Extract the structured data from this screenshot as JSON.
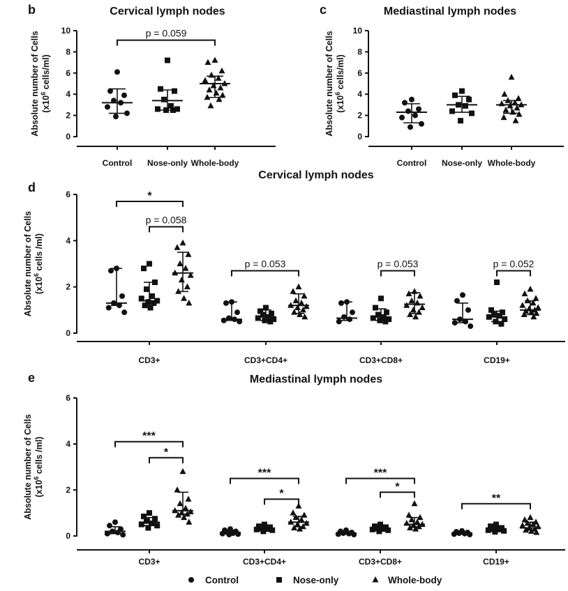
{
  "legend": [
    {
      "name": "Control",
      "marker": "circle"
    },
    {
      "name": "Nose-only",
      "marker": "square"
    },
    {
      "name": "Whole-body",
      "marker": "triangle"
    }
  ],
  "chart_data": [
    {
      "id": "b",
      "type": "scatter",
      "panel_label": "b",
      "title": "Cervical lymph nodes",
      "ylabel": [
        "Absolute number of Cells",
        "(x10^6 cells/ml)"
      ],
      "ylim": [
        0,
        10
      ],
      "yticks": [
        0,
        2,
        4,
        6,
        8,
        10
      ],
      "categories": [
        "Control",
        "Nose-only",
        "Whole-body"
      ],
      "series": [
        {
          "name": "Control",
          "marker": "circle",
          "values": [
            6.1,
            4.3,
            3.9,
            3.4,
            3.2,
            2.8,
            2.2,
            1.9
          ],
          "median": 3.2,
          "lower": 2.2,
          "upper": 4.5
        },
        {
          "name": "Nose-only",
          "marker": "square",
          "values": [
            7.2,
            4.5,
            4.3,
            3.5,
            2.9,
            2.6,
            2.6,
            2.5,
            2.5
          ],
          "median": 3.4,
          "lower": 2.5,
          "upper": 4.4
        },
        {
          "name": "Whole-body",
          "marker": "triangle",
          "values": [
            7.2,
            7.0,
            6.2,
            5.8,
            5.5,
            5.3,
            5.0,
            4.8,
            4.6,
            4.4,
            4.1,
            3.9,
            3.7,
            3.5,
            2.9
          ],
          "median": 5.0,
          "lower": 3.7,
          "upper": 5.7
        }
      ],
      "annotations": [
        {
          "from": 0,
          "to": 2,
          "text": "p = 0.059",
          "y": 9.1
        }
      ]
    },
    {
      "id": "c",
      "type": "scatter",
      "panel_label": "c",
      "title": "Mediastinal lymph nodes",
      "ylabel": [
        "Absolute number of Cells",
        "(x10^6 cells/ml)"
      ],
      "ylim": [
        0,
        10
      ],
      "yticks": [
        0,
        2,
        4,
        6,
        8,
        10
      ],
      "categories": [
        "Control",
        "Nose-only",
        "Whole-body"
      ],
      "series": [
        {
          "name": "Control",
          "marker": "circle",
          "values": [
            3.5,
            3.2,
            2.6,
            2.4,
            2.0,
            1.8,
            1.2,
            0.9
          ],
          "median": 2.3,
          "lower": 1.3,
          "upper": 3.1
        },
        {
          "name": "Nose-only",
          "marker": "square",
          "values": [
            4.3,
            3.9,
            3.5,
            3.0,
            2.9,
            2.4,
            2.2,
            1.5
          ],
          "median": 3.0,
          "lower": 2.3,
          "upper": 3.8
        },
        {
          "name": "Whole-body",
          "marker": "triangle",
          "values": [
            5.6,
            4.0,
            3.6,
            3.4,
            3.2,
            3.1,
            3.0,
            2.9,
            2.7,
            2.5,
            2.3,
            2.1,
            1.8,
            1.5
          ],
          "median": 3.0,
          "lower": 2.2,
          "upper": 3.4
        }
      ],
      "annotations": []
    },
    {
      "id": "d",
      "type": "scatter",
      "panel_label": "d",
      "title": "Cervical lymph nodes",
      "ylabel": [
        "Absolute number of Cells",
        "(x10^6 cells /ml)"
      ],
      "ylim": [
        0,
        6
      ],
      "yticks": [
        0,
        2,
        4,
        6
      ],
      "groups": [
        "CD3+",
        "CD3+CD4+",
        "CD3+CD8+",
        "CD19+"
      ],
      "series": [
        {
          "name": "Control",
          "marker": "circle",
          "groups": [
            {
              "values": [
                2.8,
                2.7,
                1.6,
                1.3,
                1.2,
                1.1,
                0.9
              ],
              "median": 1.3,
              "lower": 1.2,
              "upper": 2.8
            },
            {
              "values": [
                1.35,
                1.3,
                0.9,
                0.65,
                0.6,
                0.55,
                0.5
              ],
              "median": 0.6,
              "lower": 0.55,
              "upper": 1.35
            },
            {
              "values": [
                1.35,
                1.3,
                0.9,
                0.7,
                0.6,
                0.5
              ],
              "median": 0.65,
              "lower": 0.55,
              "upper": 1.35
            },
            {
              "values": [
                1.65,
                1.4,
                1.0,
                0.6,
                0.5,
                0.45,
                0.3
              ],
              "median": 0.6,
              "lower": 0.45,
              "upper": 1.3
            }
          ]
        },
        {
          "name": "Nose-only",
          "marker": "square",
          "groups": [
            {
              "values": [
                3.0,
                2.8,
                2.2,
                1.9,
                1.6,
                1.5,
                1.4,
                1.35,
                1.3,
                1.2,
                1.1
              ],
              "median": 1.4,
              "lower": 1.2,
              "upper": 2.2
            },
            {
              "values": [
                1.1,
                0.95,
                0.85,
                0.8,
                0.7,
                0.65,
                0.6,
                0.55,
                0.5
              ],
              "median": 0.7,
              "lower": 0.55,
              "upper": 1.0
            },
            {
              "values": [
                1.5,
                1.1,
                0.9,
                0.8,
                0.7,
                0.65,
                0.6,
                0.55,
                0.5
              ],
              "median": 0.7,
              "lower": 0.55,
              "upper": 1.05
            },
            {
              "values": [
                2.2,
                1.0,
                0.9,
                0.8,
                0.75,
                0.7,
                0.6,
                0.5,
                0.4
              ],
              "median": 0.7,
              "lower": 0.5,
              "upper": 0.95
            }
          ]
        },
        {
          "name": "Whole-body",
          "marker": "triangle",
          "groups": [
            {
              "values": [
                3.9,
                3.7,
                3.4,
                3.0,
                2.8,
                2.6,
                2.5,
                2.3,
                2.0,
                1.8,
                1.5,
                1.3
              ],
              "median": 2.6,
              "lower": 1.8,
              "upper": 3.5
            },
            {
              "values": [
                2.0,
                1.8,
                1.6,
                1.4,
                1.3,
                1.2,
                1.15,
                1.1,
                1.0,
                0.9,
                0.8,
                0.7
              ],
              "median": 1.2,
              "lower": 0.85,
              "upper": 1.7
            },
            {
              "values": [
                1.8,
                1.7,
                1.6,
                1.4,
                1.3,
                1.2,
                1.1,
                1.0,
                0.9,
                0.8,
                0.7
              ],
              "median": 1.25,
              "lower": 0.85,
              "upper": 1.75
            },
            {
              "values": [
                1.9,
                1.7,
                1.5,
                1.4,
                1.3,
                1.2,
                1.1,
                1.05,
                1.0,
                0.95,
                0.9,
                0.85,
                0.8,
                0.7
              ],
              "median": 1.0,
              "lower": 0.8,
              "upper": 1.4
            }
          ]
        }
      ],
      "annotations": [
        {
          "group": 0,
          "from": 0,
          "to": 2,
          "text": "*",
          "y": 5.7
        },
        {
          "group": 0,
          "from": 1,
          "to": 2,
          "text": "p = 0.058",
          "y": 4.6
        },
        {
          "group": 1,
          "from": 0,
          "to": 2,
          "text": "p = 0.053",
          "y": 2.7
        },
        {
          "group": 2,
          "from": 1,
          "to": 2,
          "text": "p = 0.053",
          "y": 2.7
        },
        {
          "group": 3,
          "from": 1,
          "to": 2,
          "text": "p = 0.052",
          "y": 2.7
        }
      ]
    },
    {
      "id": "e",
      "type": "scatter",
      "panel_label": "e",
      "title": "Mediastinal lymph nodes",
      "ylabel": [
        "Absolute number of Cells",
        "(x10^6 cells /ml)"
      ],
      "ylim": [
        0,
        6
      ],
      "yticks": [
        0,
        2,
        4,
        6
      ],
      "groups": [
        "CD3+",
        "CD3+CD4+",
        "CD3+CD8+",
        "CD19+"
      ],
      "series": [
        {
          "name": "Control",
          "marker": "circle",
          "groups": [
            {
              "values": [
                0.6,
                0.45,
                0.3,
                0.2,
                0.15,
                0.1,
                0.05
              ],
              "median": 0.2,
              "lower": 0.1,
              "upper": 0.4
            },
            {
              "values": [
                0.3,
                0.25,
                0.2,
                0.15,
                0.12,
                0.1,
                0.08,
                0.06
              ],
              "median": 0.15,
              "lower": 0.1,
              "upper": 0.25
            },
            {
              "values": [
                0.25,
                0.2,
                0.15,
                0.12,
                0.1,
                0.08,
                0.06
              ],
              "median": 0.12,
              "lower": 0.08,
              "upper": 0.2
            },
            {
              "values": [
                0.22,
                0.18,
                0.15,
                0.12,
                0.1,
                0.08,
                0.06
              ],
              "median": 0.12,
              "lower": 0.08,
              "upper": 0.18
            }
          ]
        },
        {
          "name": "Nose-only",
          "marker": "square",
          "groups": [
            {
              "values": [
                1.0,
                0.85,
                0.75,
                0.65,
                0.55,
                0.5,
                0.45,
                0.35
              ],
              "median": 0.6,
              "lower": 0.45,
              "upper": 0.8
            },
            {
              "values": [
                0.5,
                0.42,
                0.38,
                0.32,
                0.3,
                0.28,
                0.25,
                0.2
              ],
              "median": 0.3,
              "lower": 0.22,
              "upper": 0.42
            },
            {
              "values": [
                0.5,
                0.42,
                0.38,
                0.33,
                0.3,
                0.28,
                0.25,
                0.2
              ],
              "median": 0.3,
              "lower": 0.22,
              "upper": 0.42
            },
            {
              "values": [
                0.5,
                0.42,
                0.35,
                0.3,
                0.28,
                0.25,
                0.22,
                0.18
              ],
              "median": 0.27,
              "lower": 0.2,
              "upper": 0.42
            }
          ]
        },
        {
          "name": "Whole-body",
          "marker": "triangle",
          "groups": [
            {
              "values": [
                2.8,
                2.0,
                1.6,
                1.4,
                1.2,
                1.1,
                1.05,
                1.0,
                0.95,
                0.9,
                0.8,
                0.6
              ],
              "median": 1.1,
              "lower": 0.95,
              "upper": 1.9
            },
            {
              "values": [
                1.3,
                1.0,
                0.9,
                0.8,
                0.7,
                0.6,
                0.55,
                0.5,
                0.4,
                0.35,
                0.3
              ],
              "median": 0.6,
              "lower": 0.4,
              "upper": 0.85
            },
            {
              "values": [
                1.4,
                0.9,
                0.8,
                0.7,
                0.6,
                0.55,
                0.5,
                0.45,
                0.4,
                0.35,
                0.3
              ],
              "median": 0.5,
              "lower": 0.4,
              "upper": 0.8
            },
            {
              "values": [
                0.8,
                0.7,
                0.6,
                0.55,
                0.5,
                0.45,
                0.4,
                0.35,
                0.3,
                0.25,
                0.2,
                0.15
              ],
              "median": 0.35,
              "lower": 0.25,
              "upper": 0.6
            }
          ]
        }
      ],
      "annotations": [
        {
          "group": 0,
          "from": 0,
          "to": 2,
          "text": "***",
          "y": 4.1
        },
        {
          "group": 0,
          "from": 1,
          "to": 2,
          "text": "*",
          "y": 3.4
        },
        {
          "group": 1,
          "from": 0,
          "to": 2,
          "text": "***",
          "y": 2.5
        },
        {
          "group": 1,
          "from": 1,
          "to": 2,
          "text": "*",
          "y": 1.6
        },
        {
          "group": 2,
          "from": 0,
          "to": 2,
          "text": "***",
          "y": 2.5
        },
        {
          "group": 2,
          "from": 1,
          "to": 2,
          "text": "*",
          "y": 1.9
        },
        {
          "group": 3,
          "from": 0,
          "to": 2,
          "text": "**",
          "y": 1.4
        }
      ]
    }
  ]
}
